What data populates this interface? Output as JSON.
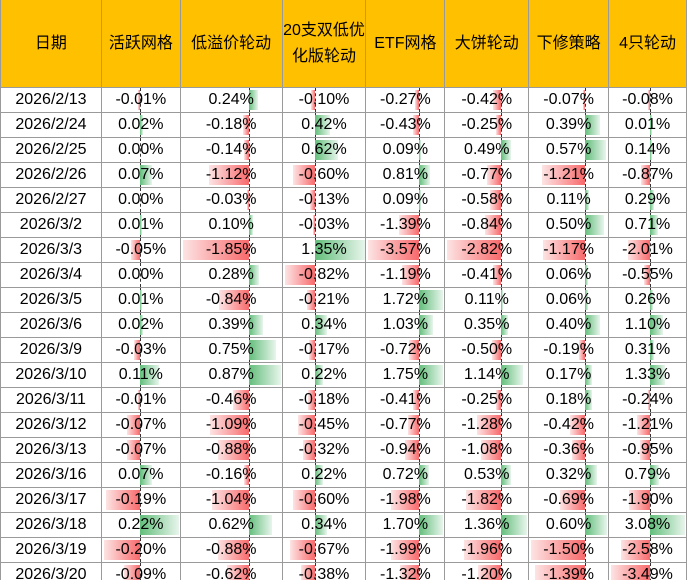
{
  "headers": [
    "日期",
    "活跃网格",
    "低溢价轮动",
    "20支双低优化版轮动",
    "ETF网格",
    "大饼轮动",
    "下修策略",
    "4只轮动"
  ],
  "colors": {
    "header_bg": "#ffc000",
    "positive_bar": "#63be7b",
    "negative_bar": "#f8696b"
  },
  "rows": [
    {
      "date": "2026/2/13",
      "values": [
        "-0.01%",
        "0.24%",
        "-0.10%",
        "-0.27%",
        "-0.42%",
        "-0.07%",
        "-0.08%"
      ]
    },
    {
      "date": "2026/2/24",
      "values": [
        "0.02%",
        "-0.18%",
        "0.42%",
        "-0.43%",
        "-0.25%",
        "0.39%",
        "0.01%"
      ]
    },
    {
      "date": "2026/2/25",
      "values": [
        "0.00%",
        "-0.14%",
        "0.62%",
        "0.09%",
        "0.49%",
        "0.57%",
        "0.14%"
      ]
    },
    {
      "date": "2026/2/26",
      "values": [
        "0.07%",
        "-1.12%",
        "-0.60%",
        "0.81%",
        "-0.77%",
        "-1.21%",
        "-0.87%"
      ]
    },
    {
      "date": "2026/2/27",
      "values": [
        "0.00%",
        "-0.03%",
        "-0.13%",
        "0.09%",
        "-0.58%",
        "0.11%",
        "0.29%"
      ]
    },
    {
      "date": "2026/3/2",
      "values": [
        "0.01%",
        "0.10%",
        "-0.03%",
        "-1.39%",
        "-0.84%",
        "0.50%",
        "0.71%"
      ]
    },
    {
      "date": "2026/3/3",
      "values": [
        "-0.05%",
        "-1.85%",
        "1.35%",
        "-3.57%",
        "-2.82%",
        "-1.17%",
        "-2.01%"
      ]
    },
    {
      "date": "2026/3/4",
      "values": [
        "0.00%",
        "0.28%",
        "-0.82%",
        "-1.19%",
        "-0.41%",
        "0.06%",
        "-0.55%"
      ]
    },
    {
      "date": "2026/3/5",
      "values": [
        "0.01%",
        "-0.84%",
        "-0.21%",
        "1.72%",
        "0.11%",
        "0.06%",
        "0.26%"
      ]
    },
    {
      "date": "2026/3/6",
      "values": [
        "0.02%",
        "0.39%",
        "0.34%",
        "1.03%",
        "0.35%",
        "0.40%",
        "1.10%"
      ]
    },
    {
      "date": "2026/3/9",
      "values": [
        "-0.03%",
        "0.75%",
        "-0.17%",
        "-0.72%",
        "-0.50%",
        "-0.19%",
        "0.31%"
      ]
    },
    {
      "date": "2026/3/10",
      "values": [
        "0.11%",
        "0.87%",
        "0.22%",
        "1.75%",
        "1.14%",
        "0.17%",
        "1.33%"
      ]
    },
    {
      "date": "2026/3/11",
      "values": [
        "-0.01%",
        "-0.46%",
        "-0.18%",
        "-0.41%",
        "-0.25%",
        "0.18%",
        "-0.24%"
      ]
    },
    {
      "date": "2026/3/12",
      "values": [
        "-0.07%",
        "-1.09%",
        "-0.45%",
        "-0.77%",
        "-1.28%",
        "-0.42%",
        "-1.21%"
      ]
    },
    {
      "date": "2026/3/13",
      "values": [
        "-0.07%",
        "-0.88%",
        "-0.32%",
        "-0.94%",
        "-1.08%",
        "-0.36%",
        "-0.95%"
      ]
    },
    {
      "date": "2026/3/16",
      "values": [
        "0.07%",
        "-0.16%",
        "0.22%",
        "0.72%",
        "0.53%",
        "0.32%",
        "0.79%"
      ]
    },
    {
      "date": "2026/3/17",
      "values": [
        "-0.19%",
        "-1.04%",
        "-0.60%",
        "-1.98%",
        "-1.82%",
        "-0.69%",
        "-1.90%"
      ]
    },
    {
      "date": "2026/3/18",
      "values": [
        "0.22%",
        "0.62%",
        "0.34%",
        "1.70%",
        "1.36%",
        "0.60%",
        "3.08%"
      ]
    },
    {
      "date": "2026/3/19",
      "values": [
        "-0.20%",
        "-0.88%",
        "-0.67%",
        "-1.99%",
        "-1.96%",
        "-1.50%",
        "-2.58%"
      ]
    },
    {
      "date": "2026/3/20",
      "values": [
        "-0.09%",
        "-0.62%",
        "-0.38%",
        "-1.32%",
        "-1.20%",
        "-1.39%",
        "-3.49%"
      ]
    }
  ]
}
